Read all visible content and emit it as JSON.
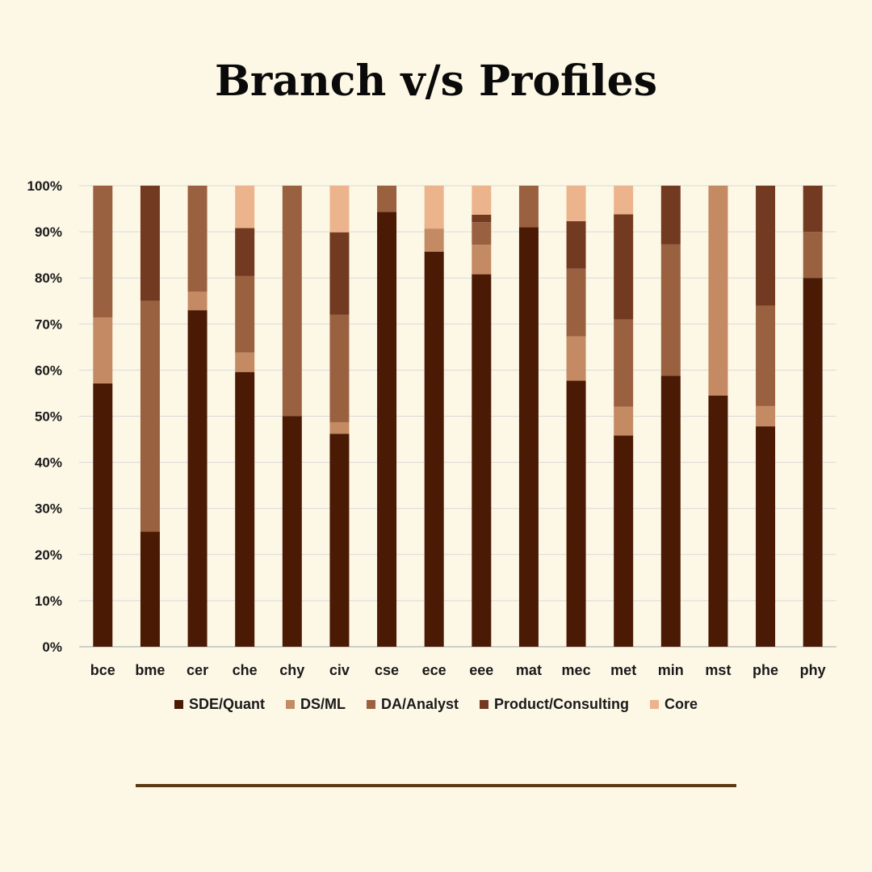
{
  "title": "Branch v/s Profiles",
  "colors": {
    "background": "#fdf8e6",
    "grid": "#d9d9d9",
    "footer_rule": "#5b3a12"
  },
  "chart_data": {
    "type": "bar",
    "stacked": true,
    "percent": true,
    "categories": [
      "bce",
      "bme",
      "cer",
      "che",
      "chy",
      "civ",
      "cse",
      "ece",
      "eee",
      "mat",
      "mec",
      "met",
      "min",
      "mst",
      "phe",
      "phy"
    ],
    "series": [
      {
        "name": "SDE/Quant",
        "color": "#4a1a04",
        "values": [
          57.1,
          25,
          73,
          59.6,
          50,
          46.2,
          94.3,
          85.7,
          80.8,
          91,
          57.7,
          45.8,
          58.8,
          54.5,
          47.8,
          80
        ]
      },
      {
        "name": "DS/ML",
        "color": "#c48a63",
        "values": [
          14.3,
          0,
          4,
          4.2,
          0,
          2.5,
          0,
          5,
          6.4,
          0,
          9.6,
          6.3,
          0,
          45.5,
          4.4,
          0
        ]
      },
      {
        "name": "DA/Analyst",
        "color": "#9a6141",
        "values": [
          28.6,
          50,
          23,
          16.6,
          50,
          23.3,
          5.7,
          0,
          4.9,
          9,
          14.7,
          18.9,
          28.5,
          0,
          21.8,
          10
        ]
      },
      {
        "name": "Product/Consulting",
        "color": "#723a20",
        "values": [
          0,
          25,
          0,
          10.4,
          0,
          17.9,
          0,
          0,
          1.6,
          0,
          10.3,
          22.8,
          12.7,
          0,
          26,
          10
        ]
      },
      {
        "name": "Core",
        "color": "#ecb48c",
        "values": [
          0,
          0,
          0,
          9.2,
          0,
          10.1,
          0,
          9.3,
          6.3,
          0,
          7.7,
          6.2,
          0,
          0,
          0,
          0
        ]
      }
    ],
    "ylim": [
      0,
      100
    ],
    "yticks": [
      "0%",
      "10%",
      "20%",
      "30%",
      "40%",
      "50%",
      "60%",
      "70%",
      "80%",
      "90%",
      "100%"
    ],
    "grid": true,
    "legend_position": "bottom"
  }
}
